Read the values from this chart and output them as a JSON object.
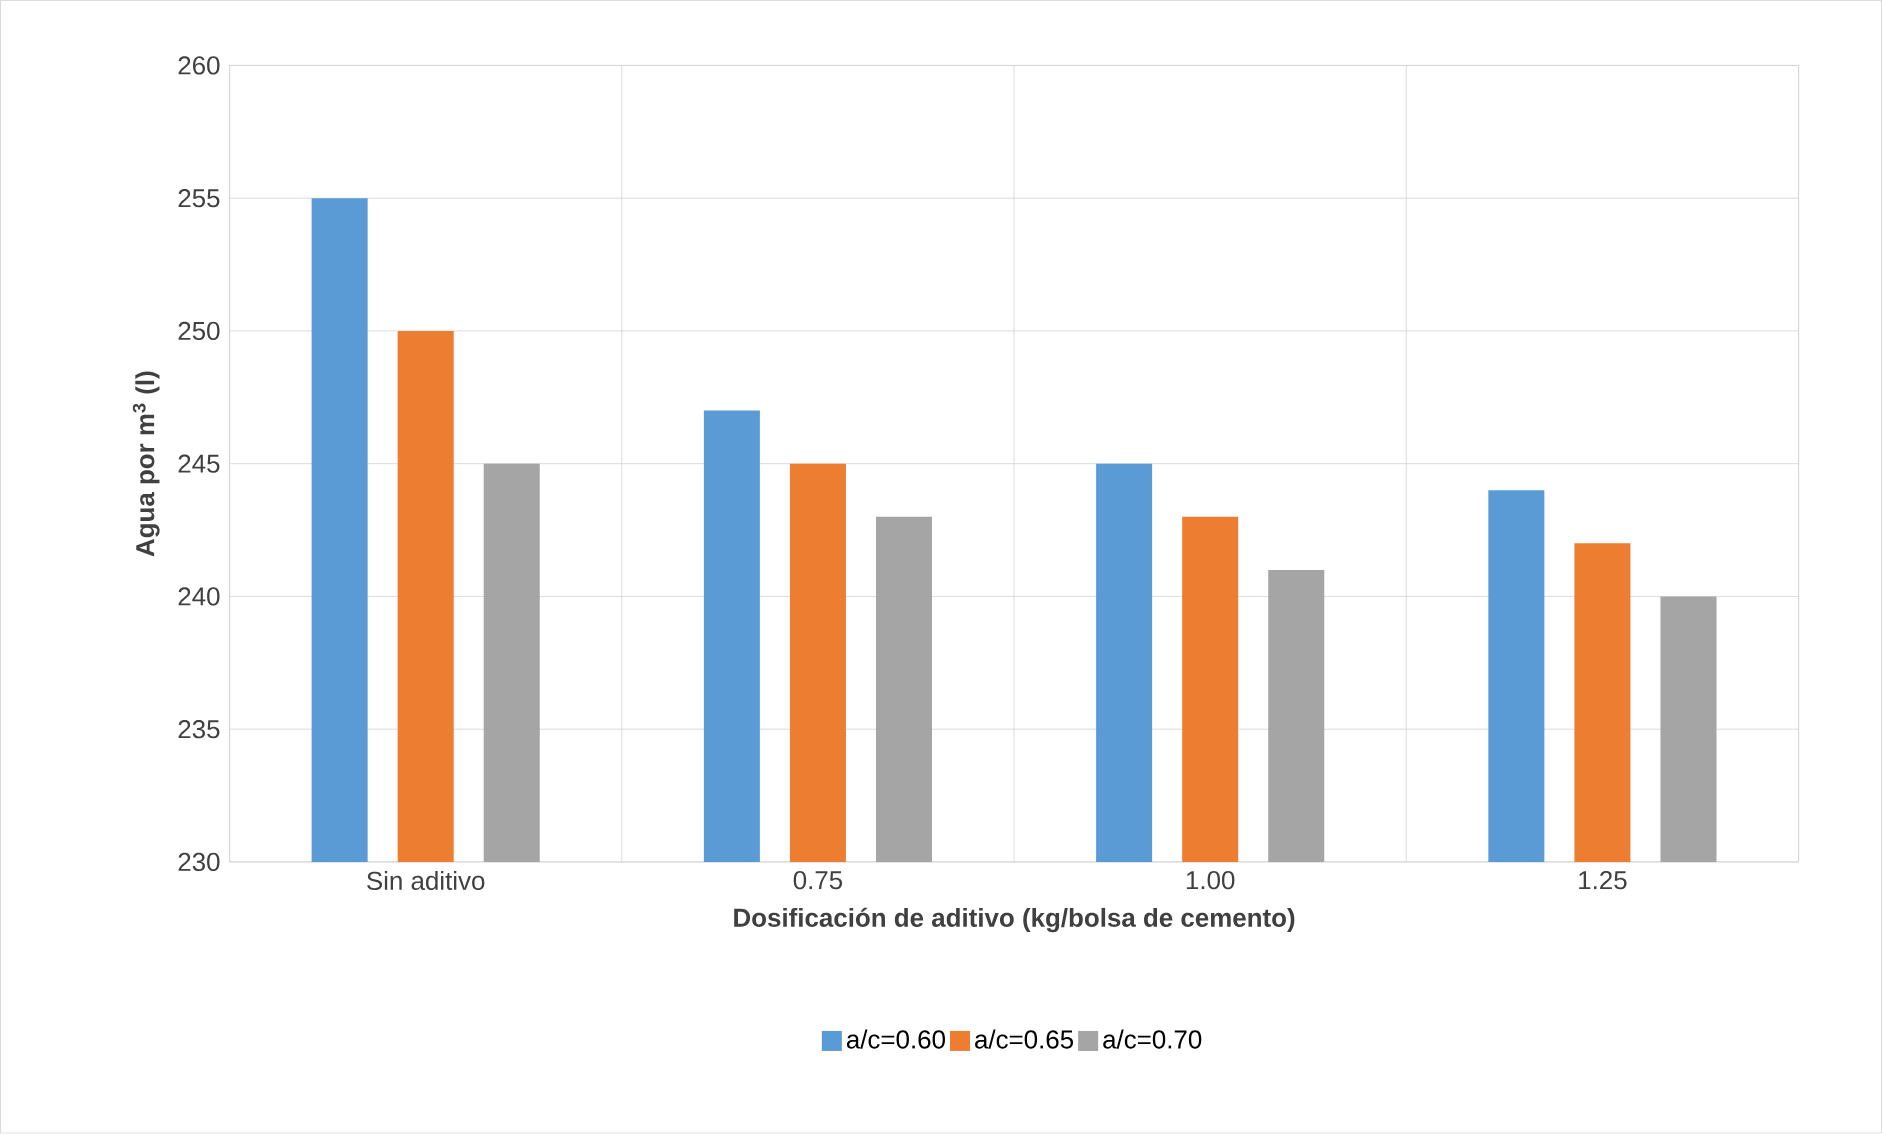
{
  "chart_data": {
    "type": "bar",
    "xlabel": "Dosificación de aditivo (kg/bolsa de cemento)",
    "ylabel": "Agua por m$^{3}$ (l)",
    "categories": [
      "Sin aditivo",
      "0.75",
      "1.00",
      "1.25"
    ],
    "series": [
      {
        "name": "a/c=0.60",
        "color": "#5b9bd5",
        "values": [
          255,
          247,
          245,
          244
        ]
      },
      {
        "name": "a/c=0.65",
        "color": "#ed7d31",
        "values": [
          250,
          245,
          243,
          242
        ]
      },
      {
        "name": "a/c=0.70",
        "color": "#a5a5a5",
        "values": [
          245,
          243,
          241,
          240
        ]
      }
    ],
    "ylim": [
      230,
      260
    ],
    "yticks": [
      230,
      235,
      240,
      245,
      250,
      255,
      260
    ],
    "grid": true,
    "legend": "bottom"
  }
}
